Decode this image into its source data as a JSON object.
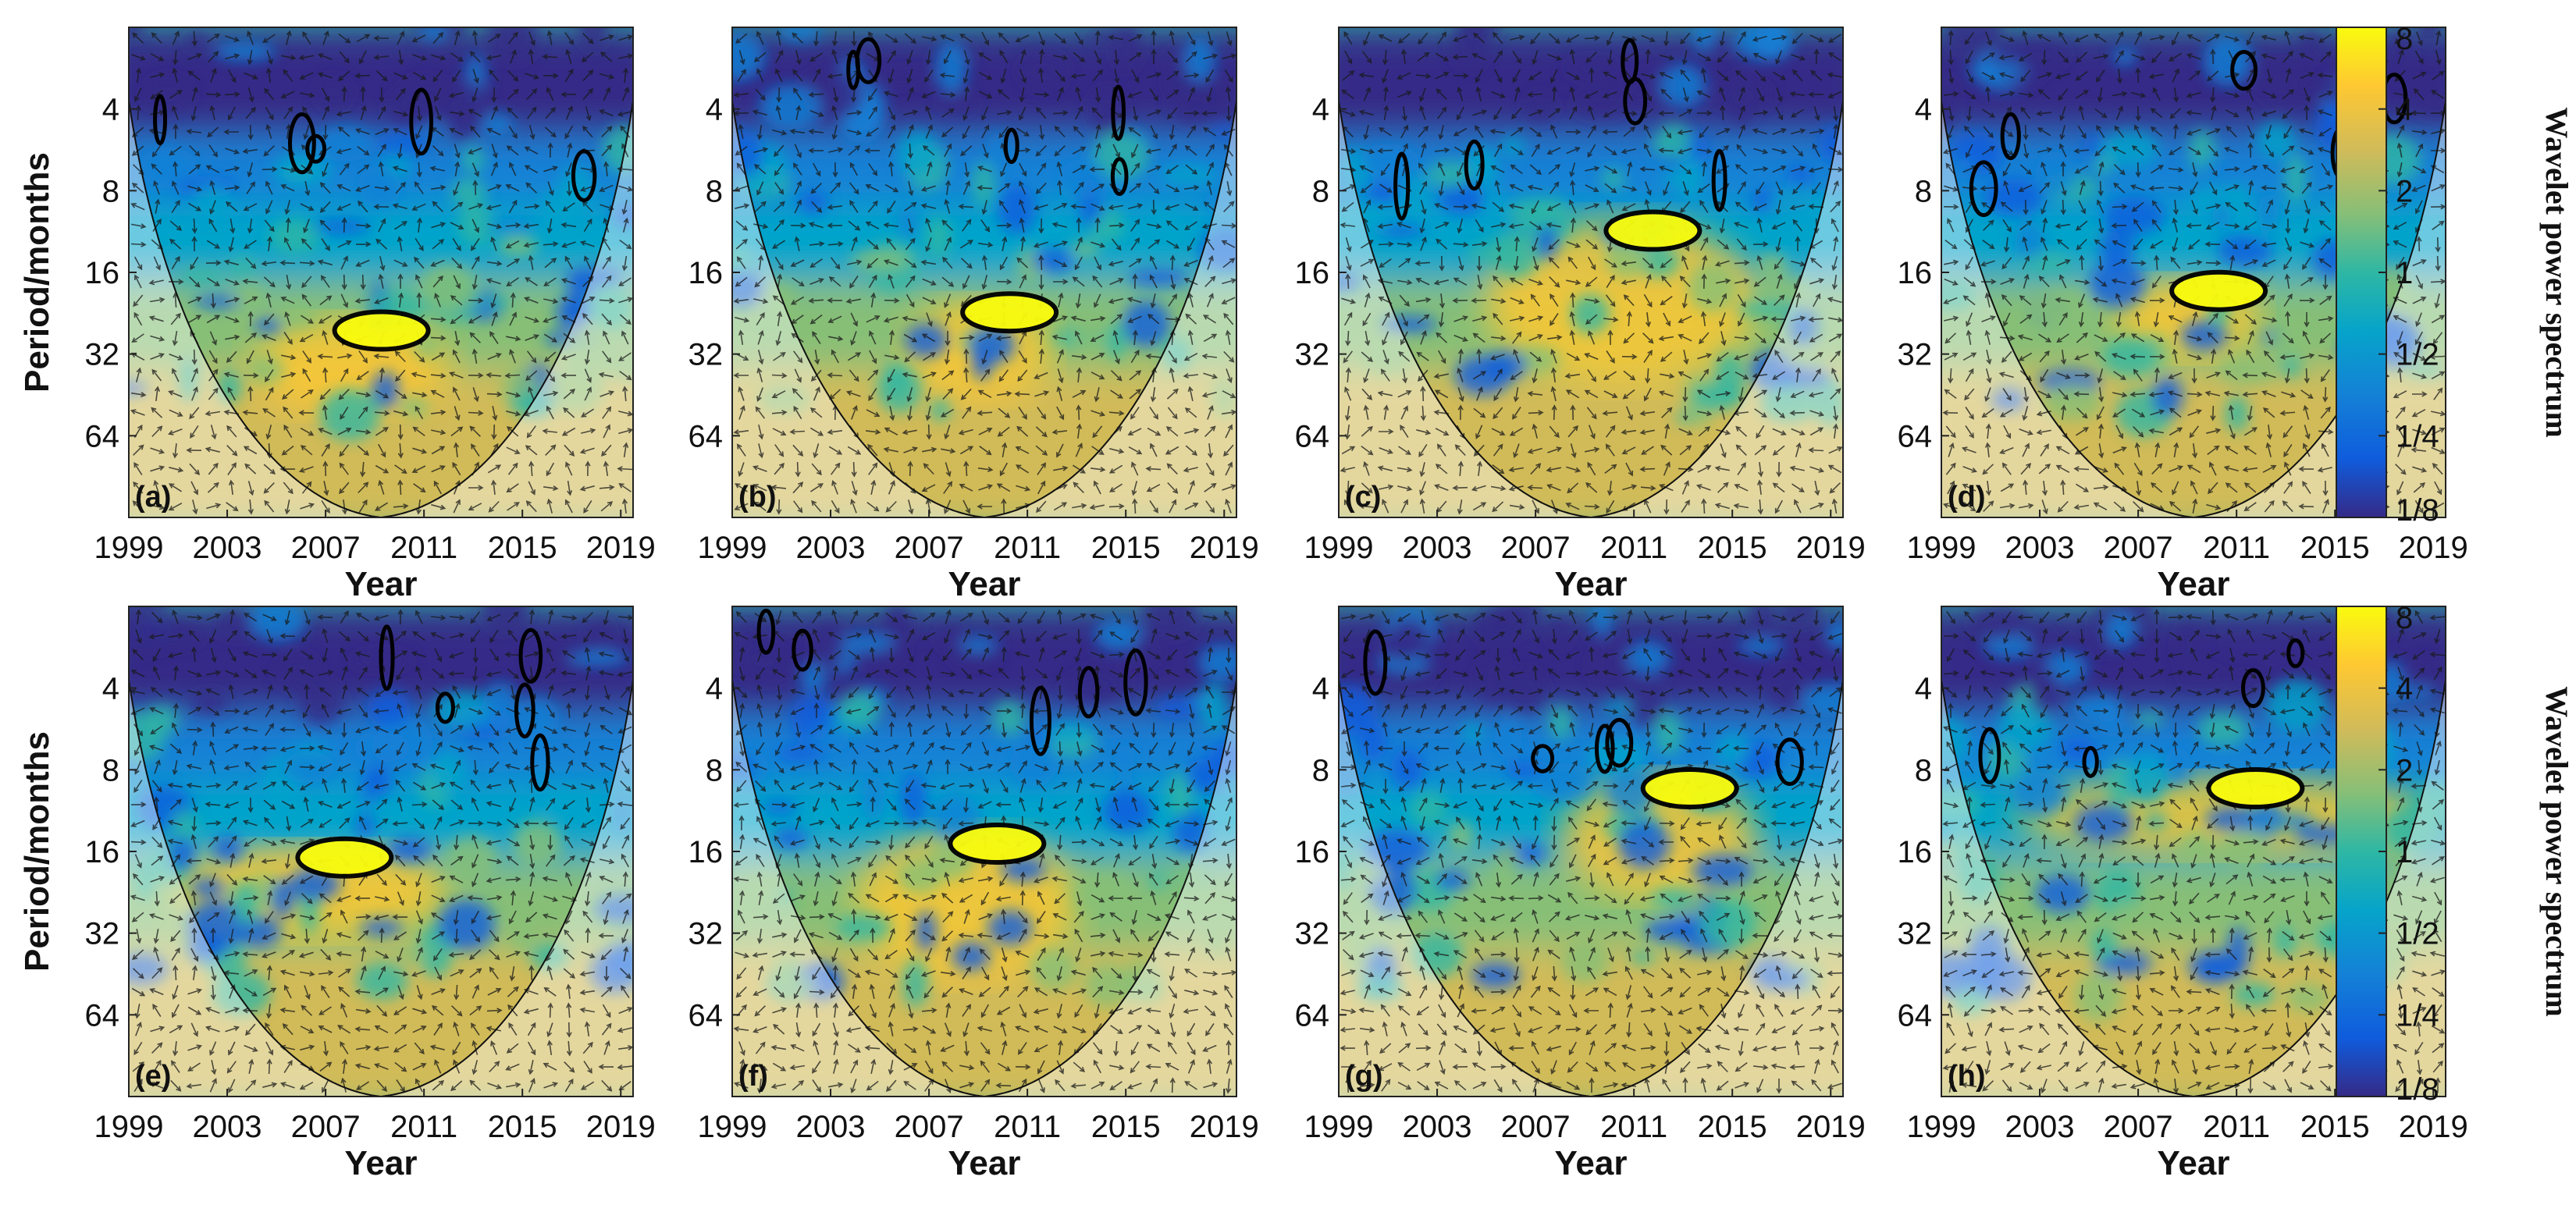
{
  "chart_data": {
    "type": "heatmap",
    "subtype": "cross-wavelet / wavelet coherence panels with phase arrows",
    "ylabel": "Period/months",
    "xlabel": "Year",
    "x_ticks": [
      "1999",
      "2003",
      "2007",
      "2011",
      "2015",
      "2019"
    ],
    "x_range": [
      1999,
      2019.5
    ],
    "y_ticks": [
      "4",
      "8",
      "16",
      "32",
      "64"
    ],
    "y_range_log2": [
      1,
      7
    ],
    "colorbar": {
      "title": "Wavelet power spectrum",
      "ticks": [
        "8",
        "4",
        "2",
        "1",
        "1/2",
        "1/4",
        "1/8"
      ],
      "colors": [
        "#352a87",
        "#0f5cdd",
        "#1481d6",
        "#06a4ca",
        "#2eb7a4",
        "#87bf77",
        "#d1bb59",
        "#fec832",
        "#f9fb0e"
      ]
    },
    "panels": [
      {
        "label": "(a)",
        "row": 0,
        "col": 0,
        "warm_periods": [
          28,
          45
        ],
        "warm_years": [
          2004,
          2012
        ]
      },
      {
        "label": "(b)",
        "row": 0,
        "col": 1,
        "warm_periods": [
          24,
          40
        ],
        "warm_years": [
          2006,
          2012
        ]
      },
      {
        "label": "(c)",
        "row": 0,
        "col": 2,
        "warm_periods": [
          12,
          35
        ],
        "warm_years": [
          2005,
          2016
        ]
      },
      {
        "label": "(d)",
        "row": 0,
        "col": 3,
        "warm_periods": [
          20,
          28
        ],
        "warm_years": [
          2006,
          2012
        ]
      },
      {
        "label": "(e)",
        "row": 1,
        "col": 0,
        "warm_periods": [
          18,
          28
        ],
        "warm_years": [
          2001,
          2012
        ]
      },
      {
        "label": "(f)",
        "row": 1,
        "col": 1,
        "warm_periods": [
          16,
          40
        ],
        "warm_years": [
          2004,
          2013
        ]
      },
      {
        "label": "(g)",
        "row": 1,
        "col": 2,
        "warm_periods": [
          10,
          20
        ],
        "warm_years": [
          2008,
          2016
        ]
      },
      {
        "label": "(h)",
        "row": 1,
        "col": 3,
        "warm_periods": [
          10,
          14
        ],
        "warm_years": [
          2002,
          2019
        ]
      }
    ]
  }
}
